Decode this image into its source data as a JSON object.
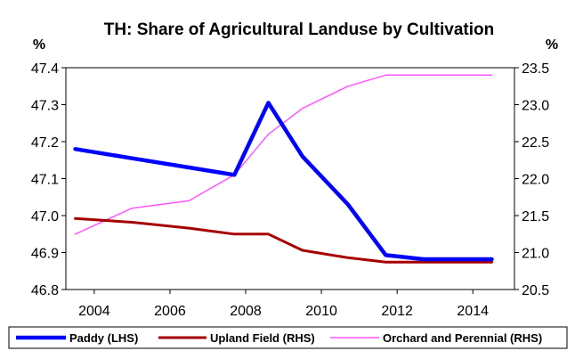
{
  "chart_data": {
    "type": "line",
    "title": "TH: Share of Agricultural Landuse by Cultivation",
    "left_unit": "%",
    "right_unit": "%",
    "x": [
      2003.5,
      2005,
      2006.5,
      2007.7,
      2008.6,
      2009.5,
      2010.7,
      2011.7,
      2012.7,
      2014.5
    ],
    "x_ticks": [
      "2004",
      "2006",
      "2008",
      "2010",
      "2012",
      "2014"
    ],
    "x_tick_values": [
      2004,
      2006,
      2008,
      2010,
      2012,
      2014
    ],
    "y_left_ticks": [
      "46.8",
      "46.9",
      "47.0",
      "47.1",
      "47.2",
      "47.3",
      "47.4"
    ],
    "y_left_range": [
      46.8,
      47.4
    ],
    "y_right_ticks": [
      "20.5",
      "21.0",
      "21.5",
      "22.0",
      "22.5",
      "23.0",
      "23.5"
    ],
    "y_right_range": [
      20.5,
      23.5
    ],
    "series": [
      {
        "name": "Paddy (LHS)",
        "axis": "left",
        "color": "#0000ff",
        "x": [
          2003.5,
          2005,
          2006.5,
          2007.7,
          2008.6,
          2009.5,
          2010.7,
          2011.7,
          2012.7,
          2014.5
        ],
        "values": [
          47.18,
          47.155,
          47.13,
          47.11,
          47.305,
          47.16,
          47.03,
          46.893,
          46.882,
          46.882
        ]
      },
      {
        "name": "Upland Field (RHS)",
        "axis": "right",
        "color": "#a50000",
        "x": [
          2003.5,
          2005,
          2006.5,
          2007.7,
          2008.6,
          2009.5,
          2010.7,
          2011.7,
          2012.7,
          2014.5
        ],
        "values": [
          21.46,
          21.41,
          21.33,
          21.25,
          21.25,
          21.03,
          20.93,
          20.87,
          20.87,
          20.87
        ]
      },
      {
        "name": "Orchard and Perennial (RHS)",
        "axis": "right",
        "color": "#ff55ff",
        "x": [
          2003.5,
          2005,
          2006.5,
          2007.7,
          2008.6,
          2009.5,
          2010.7,
          2011.7,
          2012.7,
          2014.5
        ],
        "values": [
          21.25,
          21.6,
          21.7,
          22.05,
          22.6,
          22.95,
          23.25,
          23.4,
          23.4,
          23.4
        ]
      }
    ],
    "grid": false,
    "legend_position": "bottom"
  }
}
